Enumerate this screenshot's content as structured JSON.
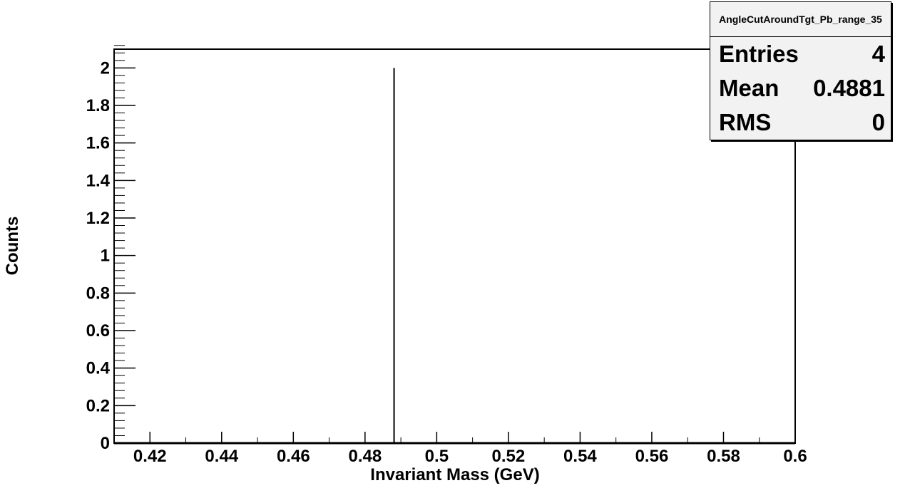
{
  "chart_data": {
    "type": "bar",
    "title": "",
    "xlabel": "Invariant Mass (GeV)",
    "ylabel": "Counts",
    "xlim": [
      0.41,
      0.6
    ],
    "ylim": [
      0,
      2.1
    ],
    "x_ticks": [
      "0.42",
      "0.44",
      "0.46",
      "0.48",
      "0.5",
      "0.52",
      "0.54",
      "0.56",
      "0.58",
      "0.6"
    ],
    "y_ticks": [
      "0",
      "0.2",
      "0.4",
      "0.6",
      "0.8",
      "1",
      "1.2",
      "1.4",
      "1.6",
      "1.8",
      "2"
    ],
    "bins": [
      {
        "x": 0.4881,
        "count": 2
      }
    ],
    "grid": false,
    "line_color": "#000000"
  },
  "stats": {
    "name": "AngleCutAroundTgt_Pb_range_35",
    "entries_label": "Entries",
    "entries_value": "4",
    "mean_label": "Mean",
    "mean_value": "0.4881",
    "rms_label": "RMS",
    "rms_value": "0"
  }
}
